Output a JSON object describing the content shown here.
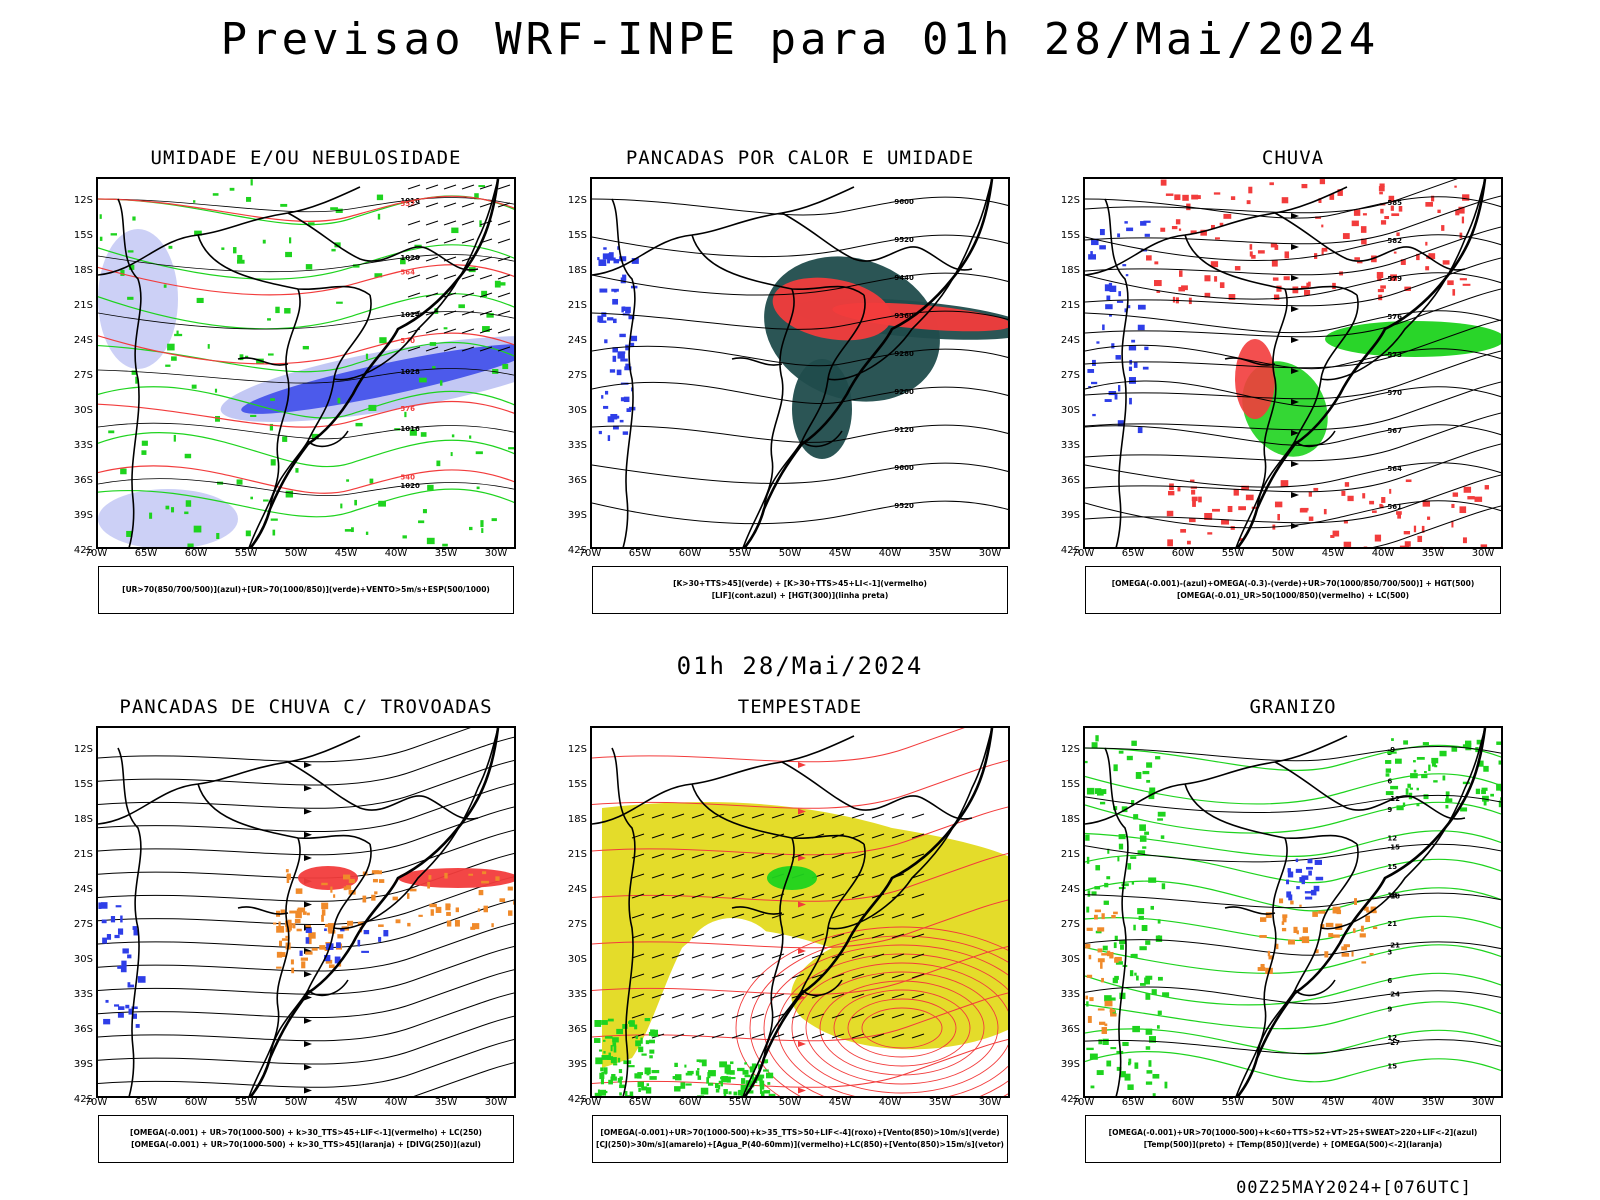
{
  "header": {
    "title": "Previsao WRF-INPE  para 01h 28/Mai/2024",
    "mid_title": "01h 28/Mai/2024",
    "footer": "00Z25MAY2024+[076UTC]"
  },
  "axes": {
    "lat_labels": [
      "12S",
      "15S",
      "18S",
      "21S",
      "24S",
      "27S",
      "30S",
      "33S",
      "36S",
      "39S",
      "42S"
    ],
    "lon_labels": [
      "70W",
      "65W",
      "60W",
      "55W",
      "50W",
      "45W",
      "40W",
      "35W",
      "30W"
    ]
  },
  "colors": {
    "blue": "#2e3ee8",
    "green": "#1ed31e",
    "red": "#f23c3c",
    "orange": "#f08a2a",
    "yellow": "#e4dc2a",
    "teal": "#204c4c",
    "lavender": "#aab0f0"
  },
  "panels": [
    {
      "id": "umidade",
      "title": "UMIDADE E/OU NEBULOSIDADE",
      "legend": [
        "[UR>70(850/700/500)](azul)+[UR>70(1000/850)](verde)+VENTO>5m/s+ESP(500/1000)"
      ],
      "contour_labels": [
        "1016",
        "1020",
        "1024",
        "1028",
        "552",
        "564",
        "570",
        "576",
        "582",
        "540",
        "546",
        "558"
      ]
    },
    {
      "id": "pancadas",
      "title": "PANCADAS POR CALOR E UMIDADE",
      "legend": [
        "[K>30+TTS>45](verde) + [K>30+TTS>45+LI<-1](vermelho)",
        "[LIF](cont.azul) + [HGT(300)](linha preta)"
      ],
      "contour_labels": [
        "9600",
        "9520",
        "9440",
        "9360",
        "9280",
        "9200",
        "9120",
        "9500"
      ]
    },
    {
      "id": "chuva",
      "title": "CHUVA",
      "legend": [
        "[OMEGA(-0.001)-(azul)+OMEGA(-0.3)-(verde)+UR>70(1000/850/700/500)] + HGT(500)",
        "[OMEGA(-0.01)_UR>50(1000/850)(vermelho) + LC(500)"
      ],
      "contour_labels": [
        "585",
        "582",
        "579",
        "576",
        "573",
        "570",
        "567",
        "564",
        "561"
      ]
    },
    {
      "id": "trovoadas",
      "title": "PANCADAS DE CHUVA C/ TROVOADAS",
      "legend": [
        "[OMEGA(-0.001) + UR>70(1000-500) + k>30_TTS>45+LIF<-1](vermelho) + LC(250)",
        "[OMEGA(-0.001) + UR>70(1000-500) + k>30_TTS>45](laranja) + [DIVG(250)](azul)"
      ],
      "contour_labels": []
    },
    {
      "id": "tempestade",
      "title": "TEMPESTADE",
      "legend": [
        "[OMEGA(-0.001)+UR>70(1000-500)+k>35_TTS>50+LIF<-4](roxo)+[Vento(850)>10m/s](verde)",
        "[CJ(250)>30m/s](amarelo)+[Agua_P(40-60mm)](vermelho)+LC(850)+[Vento(850)>15m/s](vetor)"
      ],
      "contour_labels": []
    },
    {
      "id": "granizo",
      "title": "GRANIZO",
      "legend": [
        "[OMEGA(-0.001)+UR>70(1000-500)+k<60+TTS>52+VT>25+SWEAT>220+LIF<-2](azul)",
        "[Temp(500)](preto) + [Temp(850)](verde) + [OMEGA(500)<-2](laranja)"
      ],
      "contour_labels": [
        "-9",
        "-12",
        "-15",
        "-18",
        "-21",
        "-24",
        "-27",
        "3",
        "6",
        "9",
        "12",
        "15",
        "18",
        "21"
      ]
    }
  ]
}
